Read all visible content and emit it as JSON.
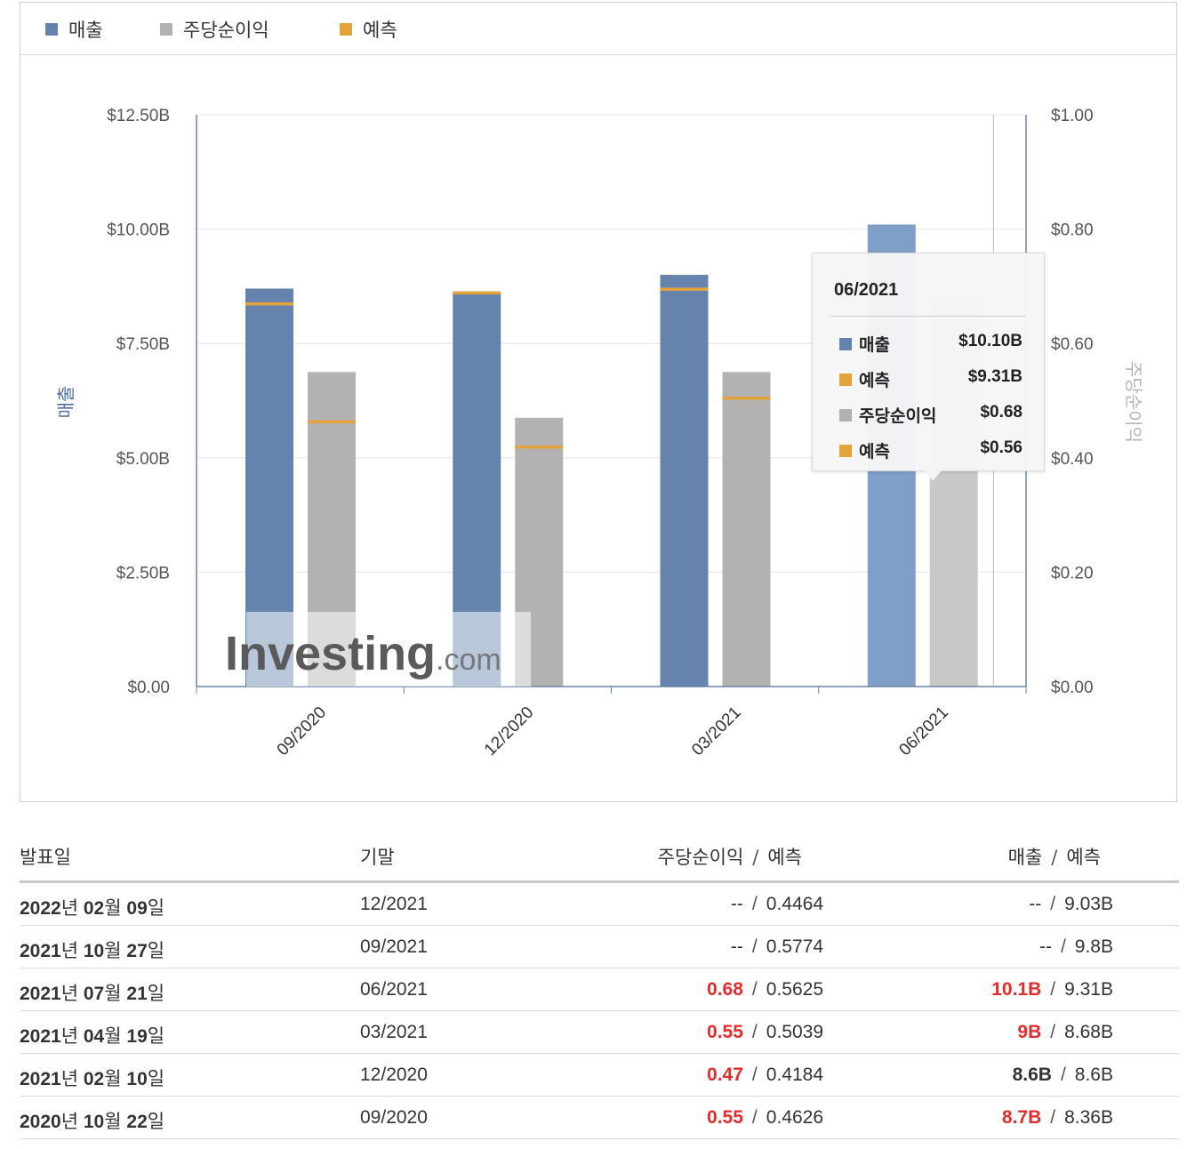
{
  "legend": {
    "items": [
      {
        "label": "매출",
        "color": "#6583ad"
      },
      {
        "label": "주당순이익",
        "color": "#b2b2b2"
      },
      {
        "label": "예측",
        "color": "#e3a33a"
      }
    ]
  },
  "chart_data": {
    "type": "bar",
    "categories": [
      "09/2020",
      "12/2020",
      "03/2021",
      "06/2021"
    ],
    "series": [
      {
        "name": "매출",
        "values": [
          8.7,
          8.6,
          9.0,
          10.1
        ],
        "forecast": [
          8.36,
          8.6,
          8.68,
          9.31
        ],
        "axis": "left",
        "color": "#6583ad"
      },
      {
        "name": "주당순이익",
        "values": [
          0.55,
          0.47,
          0.55,
          0.68
        ],
        "forecast": [
          0.4626,
          0.4184,
          0.5039,
          0.5625
        ],
        "axis": "right",
        "color": "#b2b2b2"
      }
    ],
    "forecast_name": "예측",
    "forecast_color": "#e3a33a",
    "ylabel": "매출",
    "ylabel_right": "주당순이익",
    "ylim": [
      0,
      12.5
    ],
    "ylim_right": [
      0,
      1.0
    ],
    "yticks_left": [
      "$0.00",
      "$2.50B",
      "$5.00B",
      "$7.50B",
      "$10.00B",
      "$12.50B"
    ],
    "yticks_right": [
      "$0.00",
      "$0.20",
      "$0.40",
      "$0.60",
      "$0.80",
      "$1.00"
    ],
    "highlighted_category": "06/2021",
    "watermark": "Investing.com"
  },
  "tooltip": {
    "title": "06/2021",
    "rows": [
      {
        "label": "매출",
        "value": "$10.10B",
        "color": "#6583ad"
      },
      {
        "label": "예측",
        "value": "$9.31B",
        "color": "#e3a33a"
      },
      {
        "label": "주당순이익",
        "value": "$0.68",
        "color": "#b2b2b2"
      },
      {
        "label": "예측",
        "value": "$0.56",
        "color": "#e3a33a"
      }
    ]
  },
  "table": {
    "headers": {
      "date": "발표일",
      "period": "기말",
      "eps_actual": "주당순이익",
      "eps_forecast": "예측",
      "rev_actual": "매출",
      "rev_forecast": "예측",
      "separator": "/"
    },
    "rows": [
      {
        "year": "2022",
        "month": "02",
        "day": "09",
        "period": "12/2021",
        "eps": "--",
        "eps_beat": false,
        "eps_fc": "0.4464",
        "rev": "--",
        "rev_beat": false,
        "rev_fc": "9.03B"
      },
      {
        "year": "2021",
        "month": "10",
        "day": "27",
        "period": "09/2021",
        "eps": "--",
        "eps_beat": false,
        "eps_fc": "0.5774",
        "rev": "--",
        "rev_beat": false,
        "rev_fc": "9.8B"
      },
      {
        "year": "2021",
        "month": "07",
        "day": "21",
        "period": "06/2021",
        "eps": "0.68",
        "eps_beat": true,
        "eps_fc": "0.5625",
        "rev": "10.1B",
        "rev_beat": true,
        "rev_fc": "9.31B"
      },
      {
        "year": "2021",
        "month": "04",
        "day": "19",
        "period": "03/2021",
        "eps": "0.55",
        "eps_beat": true,
        "eps_fc": "0.5039",
        "rev": "9B",
        "rev_beat": true,
        "rev_fc": "8.68B"
      },
      {
        "year": "2021",
        "month": "02",
        "day": "10",
        "period": "12/2020",
        "eps": "0.47",
        "eps_beat": true,
        "eps_fc": "0.4184",
        "rev": "8.6B",
        "rev_beat": false,
        "rev_fc": "8.6B"
      },
      {
        "year": "2020",
        "month": "10",
        "day": "22",
        "period": "09/2020",
        "eps": "0.55",
        "eps_beat": true,
        "eps_fc": "0.4626",
        "rev": "8.7B",
        "rev_beat": true,
        "rev_fc": "8.36B"
      }
    ],
    "date_units": {
      "year": "년",
      "month": "월",
      "day": "일"
    }
  }
}
